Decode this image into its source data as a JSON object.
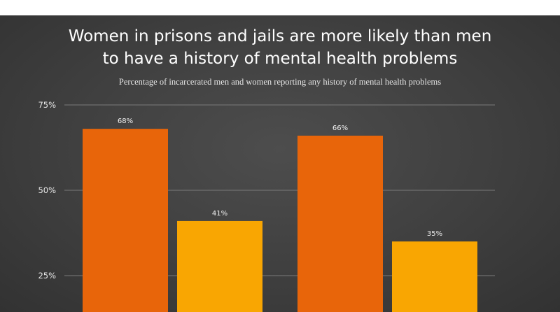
{
  "chart_data": {
    "type": "bar",
    "title": "Women in prisons and jails are more likely than men\nto have a history of mental health problems",
    "subtitle": "Percentage of incarcerated men and women reporting any history of mental health problems",
    "categories": [
      "",
      ""
    ],
    "series": [
      {
        "values": [
          68,
          66
        ],
        "data_labels": [
          "68%",
          "66%"
        ],
        "color": "#e8650a"
      },
      {
        "values": [
          41,
          35
        ],
        "data_labels": [
          "41%",
          "35%"
        ],
        "color": "#f9a602"
      }
    ],
    "yticks": [
      25,
      50,
      75
    ],
    "ytick_labels": [
      "25%",
      "50%",
      "75%"
    ],
    "ylim": [
      0,
      75
    ],
    "grid": true,
    "legend": "none",
    "background": "#404040"
  }
}
